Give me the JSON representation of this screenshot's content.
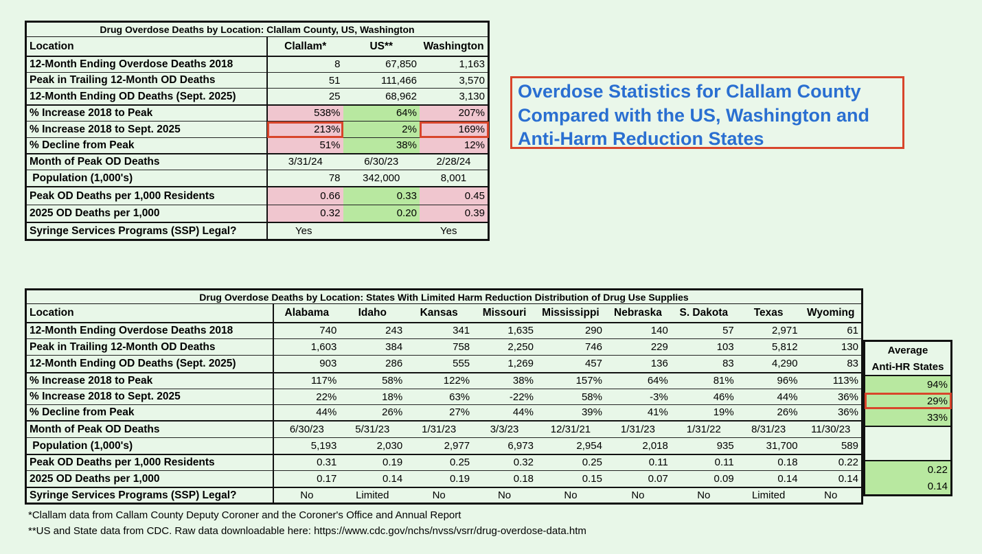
{
  "callout": {
    "line1": "Overdose Statistics for Clallam County",
    "line2": "Compared with the US, Washington and",
    "line3": "Anti-Harm Reduction States"
  },
  "table1": {
    "title": "Drug Overdose Deaths by Location: Clallam County, US, Washington",
    "headers": [
      "Location",
      "Clallam*",
      "US**",
      "Washington"
    ],
    "rows": [
      {
        "label": "12-Month Ending Overdose Deaths 2018",
        "values": [
          "8",
          "67,850",
          "1,163"
        ]
      },
      {
        "label": "Peak in Trailing 12-Month OD Deaths",
        "values": [
          "51",
          "111,466",
          "3,570"
        ]
      },
      {
        "label": "12-Month Ending OD Deaths (Sept. 2025)",
        "values": [
          "25",
          "68,962",
          "3,130"
        ]
      },
      {
        "label": "% Increase 2018 to Peak",
        "values": [
          "538%",
          "64%",
          "207%"
        ]
      },
      {
        "label": "% Increase 2018 to Sept. 2025",
        "values": [
          "213%",
          "2%",
          "169%"
        ]
      },
      {
        "label": "% Decline from Peak",
        "values": [
          "51%",
          "38%",
          "12%"
        ]
      },
      {
        "label": "Month of Peak OD Deaths",
        "values": [
          "3/31/24",
          "6/30/23",
          "2/28/24"
        ]
      },
      {
        "label": " Population (1,000's)",
        "values": [
          "78",
          "342,000",
          "8,001"
        ]
      },
      {
        "label": "Peak OD Deaths per 1,000 Residents",
        "values": [
          "0.66",
          "0.33",
          "0.45"
        ]
      },
      {
        "label": "2025 OD Deaths per 1,000",
        "values": [
          "0.32",
          "0.20",
          "0.39"
        ]
      },
      {
        "label": "Syringe Services Programs (SSP) Legal?",
        "values": [
          "Yes",
          "",
          "Yes"
        ]
      }
    ]
  },
  "table2": {
    "title": "Drug Overdose Deaths by Location: States With Limited Harm Reduction Distribution of Drug Use Supplies",
    "headers": [
      "Location",
      "Alabama",
      "Idaho",
      "Kansas",
      "Missouri",
      "Mississippi",
      "Nebraska",
      "S. Dakota",
      "Texas",
      "Wyoming"
    ],
    "rows": [
      {
        "label": "12-Month Ending Overdose Deaths 2018",
        "values": [
          "740",
          "243",
          "341",
          "1,635",
          "290",
          "140",
          "57",
          "2,971",
          "61"
        ]
      },
      {
        "label": "Peak in Trailing 12-Month OD Deaths",
        "values": [
          "1,603",
          "384",
          "758",
          "2,250",
          "746",
          "229",
          "103",
          "5,812",
          "130"
        ]
      },
      {
        "label": "12-Month Ending OD Deaths (Sept. 2025)",
        "values": [
          "903",
          "286",
          "555",
          "1,269",
          "457",
          "136",
          "83",
          "4,290",
          "83"
        ]
      },
      {
        "label": "% Increase 2018 to Peak",
        "values": [
          "117%",
          "58%",
          "122%",
          "38%",
          "157%",
          "64%",
          "81%",
          "96%",
          "113%"
        ]
      },
      {
        "label": "% Increase 2018 to Sept. 2025",
        "values": [
          "22%",
          "18%",
          "63%",
          "-22%",
          "58%",
          "-3%",
          "46%",
          "44%",
          "36%"
        ]
      },
      {
        "label": "% Decline from Peak",
        "values": [
          "44%",
          "26%",
          "27%",
          "44%",
          "39%",
          "41%",
          "19%",
          "26%",
          "36%"
        ]
      },
      {
        "label": "Month of Peak OD Deaths",
        "values": [
          "6/30/23",
          "5/31/23",
          "1/31/23",
          "3/3/23",
          "12/31/21",
          "1/31/23",
          "1/31/22",
          "8/31/23",
          "11/30/23"
        ]
      },
      {
        "label": " Population (1,000's)",
        "values": [
          "5,193",
          "2,030",
          "2,977",
          "6,973",
          "2,954",
          "2,018",
          "935",
          "31,700",
          "589"
        ]
      },
      {
        "label": "Peak OD Deaths per 1,000 Residents",
        "values": [
          "0.31",
          "0.19",
          "0.25",
          "0.32",
          "0.25",
          "0.11",
          "0.11",
          "0.18",
          "0.22"
        ]
      },
      {
        "label": "2025 OD Deaths per 1,000",
        "values": [
          "0.17",
          "0.14",
          "0.19",
          "0.18",
          "0.15",
          "0.07",
          "0.09",
          "0.14",
          "0.14"
        ]
      },
      {
        "label": "Syringe Services Programs (SSP) Legal?",
        "values": [
          "No",
          "Limited",
          "No",
          "No",
          "No",
          "No",
          "No",
          "Limited",
          "No"
        ]
      }
    ]
  },
  "average": {
    "header1": "Average",
    "header2": "Anti-HR States",
    "increase_to_peak": "94%",
    "increase_to_sept": "29%",
    "decline_from_peak": "33%",
    "peak_per_1000": "0.22",
    "per_1000_2025": "0.14"
  },
  "notes": {
    "note1": "*Clallam data from Callam County Deputy Coroner and the Coroner's Office and Annual Report",
    "note2": "**US and State data from CDC. Raw data downloadable here: https://www.cdc.gov/nchs/nvss/vsrr/drug-overdose-data.htm"
  },
  "colors": {
    "pink": "#f0c6cf",
    "green": "#b8e8a0",
    "highlight_border": "#d8452b",
    "callout_text": "#2a6fd1",
    "background": "#e8f7e8"
  }
}
